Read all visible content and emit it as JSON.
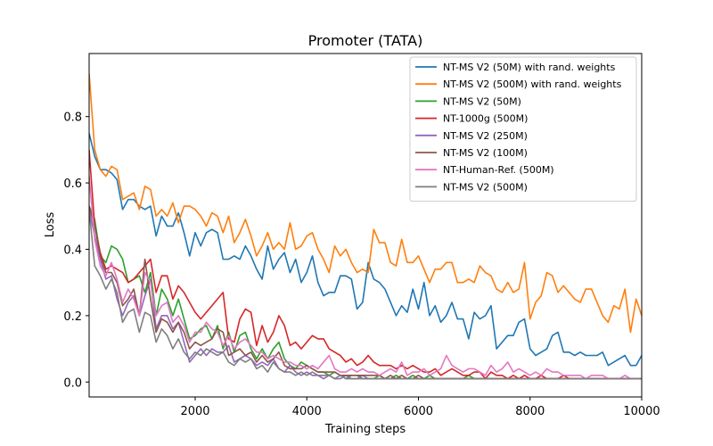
{
  "chart_data": {
    "type": "line",
    "title": "Promoter (TATA)",
    "xlabel": "Training steps",
    "ylabel": "Loss",
    "xlim": [
      100,
      10000
    ],
    "ylim": [
      -0.045,
      0.99
    ],
    "xticks": [
      2000,
      4000,
      6000,
      8000,
      10000
    ],
    "xtick_labels": [
      "2000",
      "4000",
      "6000",
      "8000",
      "10000"
    ],
    "yticks": [
      0.0,
      0.2,
      0.4,
      0.6,
      0.8
    ],
    "ytick_labels": [
      "0.0",
      "0.2",
      "0.4",
      "0.6",
      "0.8"
    ],
    "grid": false,
    "legend_position": "top-right",
    "x_step": 100,
    "series": [
      {
        "name": "NT-MS V2 (50M) with rand. weights",
        "color": "#1f77b4",
        "values": [
          0.75,
          0.68,
          0.64,
          0.64,
          0.63,
          0.61,
          0.52,
          0.55,
          0.55,
          0.53,
          0.52,
          0.53,
          0.44,
          0.5,
          0.47,
          0.47,
          0.51,
          0.45,
          0.38,
          0.45,
          0.41,
          0.45,
          0.46,
          0.45,
          0.37,
          0.37,
          0.38,
          0.37,
          0.41,
          0.38,
          0.34,
          0.31,
          0.41,
          0.34,
          0.37,
          0.39,
          0.33,
          0.37,
          0.3,
          0.33,
          0.38,
          0.3,
          0.26,
          0.27,
          0.27,
          0.32,
          0.32,
          0.31,
          0.22,
          0.24,
          0.36,
          0.31,
          0.3,
          0.28,
          0.24,
          0.2,
          0.23,
          0.21,
          0.28,
          0.22,
          0.3,
          0.2,
          0.23,
          0.18,
          0.2,
          0.24,
          0.19,
          0.19,
          0.13,
          0.21,
          0.19,
          0.2,
          0.23,
          0.1,
          0.12,
          0.14,
          0.14,
          0.18,
          0.19,
          0.1,
          0.08,
          0.09,
          0.1,
          0.14,
          0.15,
          0.09,
          0.09,
          0.08,
          0.09,
          0.08,
          0.08,
          0.08,
          0.09,
          0.05,
          0.06,
          0.07,
          0.08,
          0.05,
          0.05,
          0.08,
          0.04,
          0.03
        ]
      },
      {
        "name": "NT-MS V2 (500M) with rand. weights",
        "color": "#ff7f0e",
        "values": [
          0.93,
          0.7,
          0.64,
          0.62,
          0.65,
          0.64,
          0.55,
          0.56,
          0.57,
          0.52,
          0.59,
          0.58,
          0.5,
          0.52,
          0.5,
          0.54,
          0.48,
          0.53,
          0.53,
          0.52,
          0.5,
          0.47,
          0.51,
          0.5,
          0.45,
          0.5,
          0.42,
          0.45,
          0.49,
          0.44,
          0.38,
          0.41,
          0.45,
          0.4,
          0.42,
          0.4,
          0.48,
          0.4,
          0.41,
          0.44,
          0.45,
          0.4,
          0.37,
          0.33,
          0.41,
          0.38,
          0.4,
          0.36,
          0.33,
          0.34,
          0.33,
          0.46,
          0.42,
          0.42,
          0.36,
          0.35,
          0.43,
          0.36,
          0.36,
          0.38,
          0.34,
          0.3,
          0.34,
          0.34,
          0.36,
          0.36,
          0.3,
          0.3,
          0.31,
          0.3,
          0.35,
          0.33,
          0.32,
          0.28,
          0.27,
          0.3,
          0.27,
          0.28,
          0.36,
          0.19,
          0.24,
          0.26,
          0.33,
          0.32,
          0.27,
          0.29,
          0.27,
          0.25,
          0.24,
          0.28,
          0.28,
          0.24,
          0.2,
          0.18,
          0.23,
          0.22,
          0.28,
          0.15,
          0.25,
          0.2,
          0.22,
          0.22
        ]
      },
      {
        "name": "NT-MS V2 (50M)",
        "color": "#2ca02c",
        "values": [
          0.53,
          0.49,
          0.38,
          0.36,
          0.41,
          0.4,
          0.37,
          0.3,
          0.31,
          0.32,
          0.27,
          0.33,
          0.2,
          0.28,
          0.25,
          0.2,
          0.25,
          0.19,
          0.13,
          0.14,
          0.16,
          0.17,
          0.13,
          0.17,
          0.1,
          0.15,
          0.09,
          0.14,
          0.15,
          0.1,
          0.07,
          0.1,
          0.07,
          0.1,
          0.12,
          0.07,
          0.05,
          0.04,
          0.06,
          0.05,
          0.04,
          0.03,
          0.03,
          0.02,
          0.03,
          0.02,
          0.01,
          0.02,
          0.02,
          0.01,
          0.01,
          0.01,
          0.02,
          0.01,
          0.01,
          0.02,
          0.01,
          0.01,
          0.02,
          0.01,
          0.01,
          0.02,
          0.01,
          0.01,
          0.01,
          0.01,
          0.01,
          0.01,
          0.02,
          0.01,
          0.01,
          0.01,
          0.01,
          0.01,
          0.01,
          0.01,
          0.01,
          0.01,
          0.01,
          0.01,
          0.01,
          0.01,
          0.01,
          0.01,
          0.01,
          0.01,
          0.01,
          0.01,
          0.01,
          0.01,
          0.01,
          0.01,
          0.01,
          0.01,
          0.01,
          0.01,
          0.01,
          0.01,
          0.01,
          0.01,
          0.01,
          0.01
        ]
      },
      {
        "name": "NT-1000g (500M)",
        "color": "#d62728",
        "values": [
          0.7,
          0.47,
          0.39,
          0.34,
          0.35,
          0.34,
          0.33,
          0.3,
          0.31,
          0.33,
          0.35,
          0.37,
          0.27,
          0.32,
          0.32,
          0.25,
          0.29,
          0.27,
          0.24,
          0.21,
          0.19,
          0.21,
          0.23,
          0.25,
          0.27,
          0.13,
          0.12,
          0.19,
          0.22,
          0.21,
          0.11,
          0.17,
          0.12,
          0.15,
          0.2,
          0.17,
          0.11,
          0.12,
          0.1,
          0.12,
          0.14,
          0.13,
          0.13,
          0.1,
          0.09,
          0.08,
          0.06,
          0.07,
          0.05,
          0.06,
          0.08,
          0.06,
          0.05,
          0.05,
          0.05,
          0.04,
          0.05,
          0.04,
          0.05,
          0.04,
          0.03,
          0.03,
          0.04,
          0.02,
          0.03,
          0.04,
          0.03,
          0.02,
          0.02,
          0.03,
          0.03,
          0.01,
          0.03,
          0.02,
          0.02,
          0.01,
          0.02,
          0.01,
          0.02,
          0.01,
          0.01,
          0.02,
          0.01,
          0.01,
          0.01,
          0.02,
          0.01,
          0.01,
          0.01,
          0.01,
          0.01,
          0.01,
          0.01,
          0.01,
          0.01,
          0.01,
          0.01,
          0.01,
          0.01,
          0.01,
          0.01,
          0.01
        ]
      },
      {
        "name": "NT-MS V2 (250M)",
        "color": "#9467bd",
        "values": [
          0.52,
          0.44,
          0.37,
          0.31,
          0.32,
          0.25,
          0.2,
          0.24,
          0.26,
          0.2,
          0.26,
          0.31,
          0.16,
          0.2,
          0.2,
          0.16,
          0.18,
          0.12,
          0.06,
          0.08,
          0.1,
          0.08,
          0.1,
          0.09,
          0.09,
          0.11,
          0.06,
          0.07,
          0.08,
          0.07,
          0.05,
          0.06,
          0.05,
          0.07,
          0.04,
          0.03,
          0.05,
          0.03,
          0.02,
          0.03,
          0.02,
          0.02,
          0.01,
          0.02,
          0.01,
          0.01,
          0.02,
          0.01,
          0.01,
          0.02,
          0.01,
          0.01,
          0.01,
          0.01,
          0.01,
          0.01,
          0.01,
          0.01,
          0.01,
          0.01,
          0.01,
          0.01,
          0.01,
          0.01,
          0.01,
          0.01,
          0.01,
          0.01,
          0.01,
          0.01,
          0.01,
          0.01,
          0.01,
          0.01,
          0.01,
          0.01,
          0.01,
          0.01,
          0.01,
          0.01,
          0.01,
          0.01,
          0.01,
          0.01,
          0.01,
          0.01,
          0.01,
          0.01,
          0.01,
          0.01,
          0.01,
          0.01,
          0.01,
          0.01,
          0.01,
          0.01,
          0.01,
          0.01,
          0.01,
          0.01,
          0.01,
          0.01
        ]
      },
      {
        "name": "NT-MS V2 (100M)",
        "color": "#8c564b",
        "values": [
          0.53,
          0.47,
          0.38,
          0.33,
          0.33,
          0.3,
          0.23,
          0.25,
          0.28,
          0.2,
          0.37,
          0.25,
          0.15,
          0.19,
          0.18,
          0.15,
          0.18,
          0.15,
          0.1,
          0.12,
          0.11,
          0.12,
          0.13,
          0.16,
          0.15,
          0.08,
          0.09,
          0.1,
          0.08,
          0.09,
          0.06,
          0.08,
          0.06,
          0.07,
          0.09,
          0.05,
          0.04,
          0.04,
          0.04,
          0.05,
          0.04,
          0.03,
          0.03,
          0.03,
          0.03,
          0.02,
          0.02,
          0.02,
          0.02,
          0.02,
          0.02,
          0.02,
          0.02,
          0.01,
          0.02,
          0.01,
          0.02,
          0.01,
          0.01,
          0.02,
          0.01,
          0.01,
          0.01,
          0.01,
          0.01,
          0.01,
          0.01,
          0.01,
          0.01,
          0.01,
          0.01,
          0.01,
          0.01,
          0.01,
          0.01,
          0.01,
          0.01,
          0.01,
          0.01,
          0.01,
          0.01,
          0.01,
          0.01,
          0.01,
          0.01,
          0.01,
          0.01,
          0.01,
          0.01,
          0.01,
          0.01,
          0.01,
          0.01,
          0.01,
          0.01,
          0.01,
          0.01,
          0.01,
          0.01,
          0.01,
          0.01,
          0.01
        ]
      },
      {
        "name": "NT-Human-Ref. (500M)",
        "color": "#e377c2",
        "values": [
          0.62,
          0.43,
          0.35,
          0.32,
          0.36,
          0.31,
          0.24,
          0.28,
          0.25,
          0.2,
          0.33,
          0.3,
          0.2,
          0.23,
          0.24,
          0.18,
          0.2,
          0.17,
          0.12,
          0.15,
          0.15,
          0.18,
          0.16,
          0.15,
          0.11,
          0.14,
          0.1,
          0.12,
          0.13,
          0.11,
          0.09,
          0.09,
          0.07,
          0.08,
          0.07,
          0.06,
          0.06,
          0.05,
          0.05,
          0.04,
          0.05,
          0.04,
          0.06,
          0.08,
          0.04,
          0.03,
          0.03,
          0.04,
          0.03,
          0.04,
          0.03,
          0.03,
          0.02,
          0.03,
          0.04,
          0.03,
          0.06,
          0.02,
          0.03,
          0.03,
          0.04,
          0.02,
          0.03,
          0.04,
          0.08,
          0.05,
          0.04,
          0.03,
          0.04,
          0.04,
          0.03,
          0.02,
          0.05,
          0.03,
          0.04,
          0.06,
          0.03,
          0.04,
          0.03,
          0.02,
          0.03,
          0.02,
          0.04,
          0.03,
          0.03,
          0.02,
          0.02,
          0.02,
          0.02,
          0.01,
          0.02,
          0.02,
          0.02,
          0.01,
          0.01,
          0.01,
          0.02,
          0.01,
          0.01,
          0.01,
          0.01,
          0.02
        ]
      },
      {
        "name": "NT-MS V2 (500M)",
        "color": "#7f7f7f",
        "values": [
          0.52,
          0.35,
          0.32,
          0.28,
          0.31,
          0.27,
          0.18,
          0.21,
          0.22,
          0.15,
          0.21,
          0.2,
          0.12,
          0.16,
          0.14,
          0.1,
          0.13,
          0.09,
          0.07,
          0.09,
          0.08,
          0.1,
          0.09,
          0.08,
          0.09,
          0.06,
          0.05,
          0.07,
          0.06,
          0.07,
          0.04,
          0.05,
          0.03,
          0.06,
          0.04,
          0.03,
          0.03,
          0.02,
          0.03,
          0.02,
          0.03,
          0.02,
          0.02,
          0.02,
          0.01,
          0.02,
          0.01,
          0.01,
          0.01,
          0.01,
          0.01,
          0.01,
          0.01,
          0.01,
          0.01,
          0.01,
          0.01,
          0.01,
          0.01,
          0.01,
          0.01,
          0.01,
          0.01,
          0.01,
          0.01,
          0.01,
          0.01,
          0.01,
          0.01,
          0.01,
          0.01,
          0.01,
          0.01,
          0.01,
          0.01,
          0.01,
          0.01,
          0.01,
          0.01,
          0.01,
          0.01,
          0.01,
          0.01,
          0.01,
          0.01,
          0.01,
          0.01,
          0.01,
          0.01,
          0.01,
          0.01,
          0.01,
          0.01,
          0.01,
          0.01,
          0.01,
          0.01,
          0.01,
          0.01,
          0.01,
          0.01,
          0.01
        ]
      }
    ]
  }
}
